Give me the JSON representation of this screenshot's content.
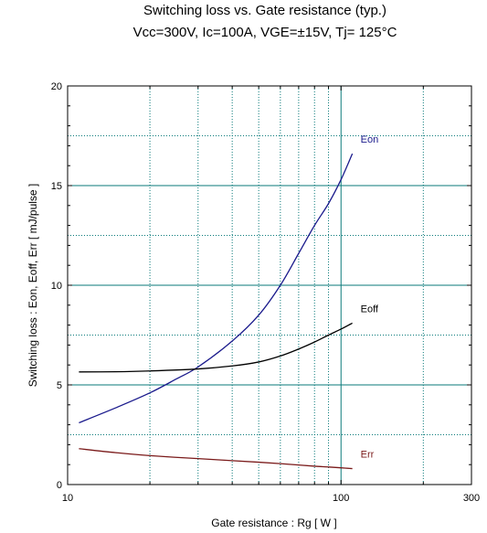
{
  "chart_data": {
    "type": "line",
    "title": "Switching loss  vs.  Gate resistance (typ.)",
    "subtitle": "Vcc=300V, Ic=100A, VGE=±15V, Tj= 125°C",
    "xlabel": "Gate resistance : Rg [ W ]",
    "ylabel": "Switching loss : Eon, Eoff, Err  [ mJ/pulse ]",
    "x_scale": "log",
    "xlim": [
      10,
      300
    ],
    "ylim": [
      0,
      20
    ],
    "x_ticks": [
      10,
      100,
      300
    ],
    "x_tick_labels": [
      "10",
      "100",
      "300"
    ],
    "y_ticks": [
      0,
      5,
      10,
      15,
      20
    ],
    "y_tick_labels": [
      "0",
      "5",
      "10",
      "15",
      "20"
    ],
    "grid": true,
    "colors": {
      "Eon": "#1a1a8c",
      "Eoff": "#000000",
      "Err": "#7a1a1a",
      "grid": "#0a7a7a"
    },
    "series": [
      {
        "name": "Eon",
        "x": [
          11,
          15,
          20,
          25,
          30,
          40,
          50,
          60,
          70,
          80,
          90,
          100,
          110
        ],
        "y": [
          3.1,
          3.85,
          4.6,
          5.3,
          5.9,
          7.2,
          8.5,
          10.0,
          11.6,
          13.0,
          14.1,
          15.3,
          16.6
        ]
      },
      {
        "name": "Eoff",
        "x": [
          11,
          15,
          20,
          30,
          40,
          50,
          60,
          70,
          80,
          90,
          100,
          110
        ],
        "y": [
          5.65,
          5.66,
          5.7,
          5.8,
          5.95,
          6.15,
          6.45,
          6.8,
          7.15,
          7.5,
          7.8,
          8.1
        ]
      },
      {
        "name": "Err",
        "x": [
          11,
          15,
          20,
          30,
          40,
          50,
          60,
          70,
          80,
          90,
          100,
          110
        ],
        "y": [
          1.8,
          1.6,
          1.45,
          1.3,
          1.2,
          1.12,
          1.05,
          0.98,
          0.92,
          0.88,
          0.84,
          0.8
        ]
      }
    ]
  }
}
